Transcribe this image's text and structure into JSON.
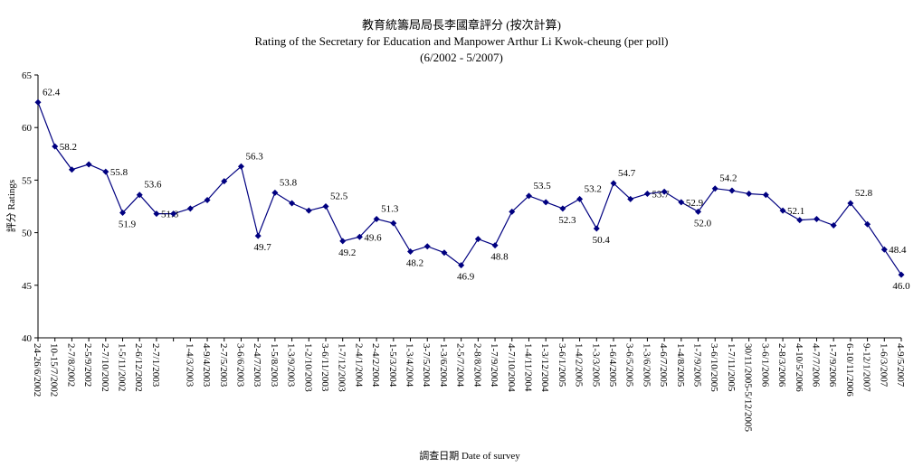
{
  "chart_data": {
    "type": "line",
    "title": "教育統籌局局長李國章評分 (按次計算)",
    "subtitle": "Rating of the Secretary for Education and Manpower Arthur Li Kwok-cheung  (per poll)",
    "period": "(6/2002 - 5/2007)",
    "y_label": "評分 Ratings",
    "x_label": "調查日期 Date of survey",
    "categories": [
      "24-26/6/2002",
      "10-15/7/2002",
      "2-7/8/2002",
      "2-5/9/2002",
      "2-7/10/2002",
      "1-5/11/2002",
      "2-6/12/2002",
      "2-7/1/2003",
      null,
      "1-4/3/2003",
      "4-9/4/2003",
      "2-7/5/2003",
      "3-6/6/2003",
      "2-4/7/2003",
      "1-5/8/2003",
      "1-3/9/2003",
      "1-2/10/2003",
      "3-6/11/2003",
      "1-7/12/2003",
      "2-4/1/2004",
      "2-4/2/2004",
      "1-5/3/2004",
      "1-3/4/2004",
      "3-7/5/2004",
      "1-3/6/2004",
      "2-5/7/2004",
      "2-8/8/2004",
      "1-7/9/2004",
      "4-7/10/2004",
      "1-4/11/2004",
      "1-3/12/2004",
      "3-6/1/2005",
      "1-4/2/2005",
      "1-3/3/2005",
      "1-6/4/2005",
      "3-6/5/2005",
      "1-3/6/2005",
      "4-6/7/2005",
      "1-4/8/2005",
      "1-7/9/2005",
      "3-6/10/2005",
      "1-7/11/2005",
      "30/11/2005-5/12/2005",
      "3-6/1/2006",
      "2-8/3/2006",
      "4-10/5/2006",
      "4-7/7/2006",
      "1-7/9/2006",
      "6-10/11/2006",
      "9-12/1/2007",
      "1-6/3/2007",
      "4-9/5/2007"
    ],
    "values": [
      62.4,
      58.2,
      56.0,
      56.5,
      55.8,
      51.9,
      53.6,
      51.8,
      51.8,
      52.3,
      53.1,
      54.9,
      56.3,
      49.7,
      53.8,
      52.8,
      52.1,
      52.5,
      49.2,
      49.6,
      51.3,
      50.9,
      48.2,
      48.7,
      48.1,
      46.9,
      49.4,
      48.8,
      52.0,
      53.5,
      52.9,
      52.3,
      53.2,
      50.4,
      54.7,
      53.2,
      53.7,
      53.9,
      52.9,
      52.0,
      54.2,
      54.0,
      53.7,
      53.6,
      52.1,
      51.2,
      51.3,
      50.7,
      52.8,
      50.8,
      48.4,
      46.0
    ],
    "value_labels": [
      "62.4",
      "58.2",
      null,
      null,
      "55.8",
      "51.9",
      "53.6",
      "51.8",
      null,
      null,
      null,
      null,
      "56.3",
      "49.7",
      "53.8",
      null,
      null,
      "52.5",
      "49.2",
      "49.6",
      "51.3",
      null,
      "48.2",
      null,
      null,
      "46.9",
      null,
      "48.8",
      null,
      "53.5",
      null,
      "52.3",
      "53.2",
      "50.4",
      "54.7",
      null,
      "53.7",
      null,
      "52.9",
      "52.0",
      "54.2",
      null,
      null,
      null,
      "52.1",
      null,
      null,
      null,
      "52.8",
      null,
      "48.4",
      "46.0"
    ],
    "color": "#000080",
    "ylim": [
      40,
      65
    ],
    "yticks": [
      40,
      45,
      50,
      55,
      60,
      65
    ]
  }
}
